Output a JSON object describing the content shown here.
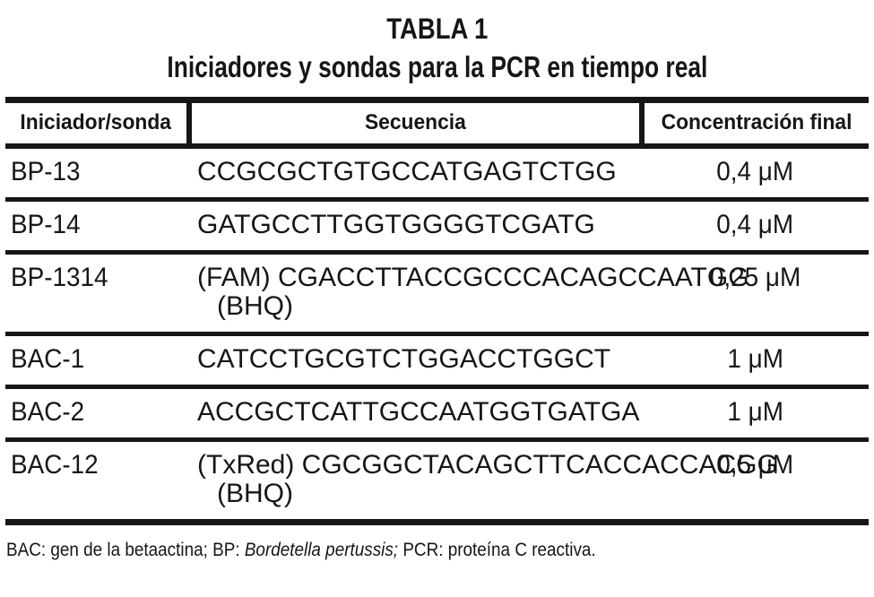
{
  "title": "TABLA 1",
  "subtitle": "Iniciadores y sondas para la PCR en tiempo real",
  "table": {
    "headers": [
      "Iniciador/sonda",
      "Secuencia",
      "Concentración final"
    ],
    "rows": [
      {
        "name": "BP-13",
        "seq_line1": "CCGCGCTGTGCCATGAGTCTGG",
        "seq_line2": "",
        "conc": "0,4 μM"
      },
      {
        "name": "BP-14",
        "seq_line1": "GATGCCTTGGTGGGGTCGATG",
        "seq_line2": "",
        "conc": "0,4 μM"
      },
      {
        "name": "BP-1314",
        "seq_line1": "(FAM) CGACCTTACCGCCCACAGCCAATGG",
        "seq_line2": "(BHQ)",
        "conc": "0,25 μM"
      },
      {
        "name": "BAC-1",
        "seq_line1": "CATCCTGCGTCTGGACCTGGCT",
        "seq_line2": "",
        "conc": "1 μM"
      },
      {
        "name": "BAC-2",
        "seq_line1": "ACCGCTCATTGCCAATGGTGATGA",
        "seq_line2": "",
        "conc": "1 μM"
      },
      {
        "name": "BAC-12",
        "seq_line1": "(TxRed) CGCGGCTACAGCTTCACCACCACGG",
        "seq_line2": "(BHQ)",
        "conc": "0,5 μM"
      }
    ]
  },
  "footnote": {
    "part1": "BAC: gen de la betaactina; BP: ",
    "italic": "Bordetella pertussis;",
    "part2": " PCR: proteína C reactiva."
  },
  "colors": {
    "text": "#161616",
    "rule": "#161616",
    "background": "#ffffff"
  }
}
